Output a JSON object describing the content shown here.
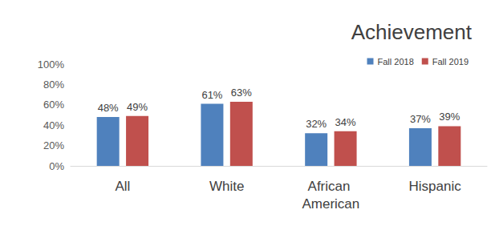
{
  "chart_data": {
    "type": "bar",
    "title": "Achievement",
    "categories": [
      "All",
      "White",
      "African American",
      "Hispanic"
    ],
    "series": [
      {
        "name": "Fall 2018",
        "color": "#4f81bd",
        "values": [
          48,
          61,
          32,
          37
        ],
        "value_labels": [
          "48%",
          "61%",
          "32%",
          "37%"
        ]
      },
      {
        "name": "Fall 2019",
        "color": "#c0504d",
        "values": [
          49,
          63,
          34,
          39
        ],
        "value_labels": [
          "49%",
          "63%",
          "34%",
          "39%"
        ]
      }
    ],
    "ylim": [
      0,
      100
    ],
    "yticks": [
      {
        "value": 0,
        "label": "0%"
      },
      {
        "value": 20,
        "label": "20%"
      },
      {
        "value": 40,
        "label": "40%"
      },
      {
        "value": 60,
        "label": "60%"
      },
      {
        "value": 80,
        "label": "80%"
      },
      {
        "value": 100,
        "label": "100%"
      }
    ],
    "grid": false,
    "legend": "top-right",
    "data_labels": true
  }
}
